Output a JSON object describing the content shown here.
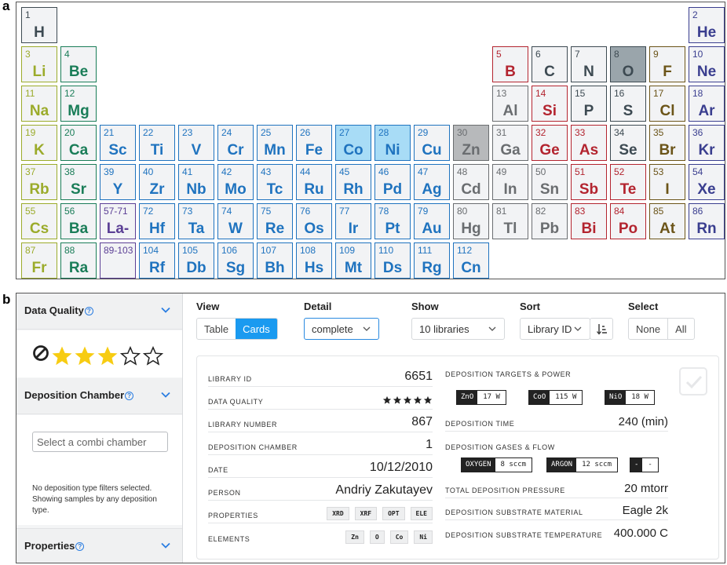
{
  "panel_labels": {
    "a": "a",
    "b": "b"
  },
  "colors": {
    "alkali": "#9bab2b",
    "alkaline_earth": "#1a7d58",
    "transition": "#1f73bf",
    "lanthanide": "#5b3f95",
    "post_transition": "#6a6d70",
    "metalloid": "#3d4a52",
    "nonmetal": "#b3242f",
    "halogen": "#6b5418",
    "noble": "#3a3e8f",
    "accent": "#1a9af0",
    "selected_blue": "#a8dcf6",
    "selected_grey": "#b7b9bb",
    "selected_slate": "#9aa5ab"
  },
  "periodic_table": {
    "elements": [
      {
        "n": "1",
        "s": "H",
        "g": 1,
        "p": 1,
        "c": "metalloid"
      },
      {
        "n": "2",
        "s": "He",
        "g": 18,
        "p": 1,
        "c": "noble"
      },
      {
        "n": "3",
        "s": "Li",
        "g": 1,
        "p": 2,
        "c": "alkali"
      },
      {
        "n": "4",
        "s": "Be",
        "g": 2,
        "p": 2,
        "c": "alkaline_earth"
      },
      {
        "n": "5",
        "s": "B",
        "g": 13,
        "p": 2,
        "c": "nonmetal"
      },
      {
        "n": "6",
        "s": "C",
        "g": 14,
        "p": 2,
        "c": "metalloid"
      },
      {
        "n": "7",
        "s": "N",
        "g": 15,
        "p": 2,
        "c": "metalloid"
      },
      {
        "n": "8",
        "s": "O",
        "g": 16,
        "p": 2,
        "c": "metalloid",
        "sel": "slate"
      },
      {
        "n": "9",
        "s": "F",
        "g": 17,
        "p": 2,
        "c": "halogen"
      },
      {
        "n": "10",
        "s": "Ne",
        "g": 18,
        "p": 2,
        "c": "noble"
      },
      {
        "n": "11",
        "s": "Na",
        "g": 1,
        "p": 3,
        "c": "alkali"
      },
      {
        "n": "12",
        "s": "Mg",
        "g": 2,
        "p": 3,
        "c": "alkaline_earth"
      },
      {
        "n": "13",
        "s": "Al",
        "g": 13,
        "p": 3,
        "c": "post_transition"
      },
      {
        "n": "14",
        "s": "Si",
        "g": 14,
        "p": 3,
        "c": "nonmetal"
      },
      {
        "n": "15",
        "s": "P",
        "g": 15,
        "p": 3,
        "c": "metalloid"
      },
      {
        "n": "16",
        "s": "S",
        "g": 16,
        "p": 3,
        "c": "metalloid"
      },
      {
        "n": "17",
        "s": "Cl",
        "g": 17,
        "p": 3,
        "c": "halogen"
      },
      {
        "n": "18",
        "s": "Ar",
        "g": 18,
        "p": 3,
        "c": "noble"
      },
      {
        "n": "19",
        "s": "K",
        "g": 1,
        "p": 4,
        "c": "alkali"
      },
      {
        "n": "20",
        "s": "Ca",
        "g": 2,
        "p": 4,
        "c": "alkaline_earth"
      },
      {
        "n": "21",
        "s": "Sc",
        "g": 3,
        "p": 4,
        "c": "transition"
      },
      {
        "n": "22",
        "s": "Ti",
        "g": 4,
        "p": 4,
        "c": "transition"
      },
      {
        "n": "23",
        "s": "V",
        "g": 5,
        "p": 4,
        "c": "transition"
      },
      {
        "n": "24",
        "s": "Cr",
        "g": 6,
        "p": 4,
        "c": "transition"
      },
      {
        "n": "25",
        "s": "Mn",
        "g": 7,
        "p": 4,
        "c": "transition"
      },
      {
        "n": "26",
        "s": "Fe",
        "g": 8,
        "p": 4,
        "c": "transition"
      },
      {
        "n": "27",
        "s": "Co",
        "g": 9,
        "p": 4,
        "c": "transition",
        "sel": "blue"
      },
      {
        "n": "28",
        "s": "Ni",
        "g": 10,
        "p": 4,
        "c": "transition",
        "sel": "blue"
      },
      {
        "n": "29",
        "s": "Cu",
        "g": 11,
        "p": 4,
        "c": "transition"
      },
      {
        "n": "30",
        "s": "Zn",
        "g": 12,
        "p": 4,
        "c": "post_transition",
        "sel": "grey"
      },
      {
        "n": "31",
        "s": "Ga",
        "g": 13,
        "p": 4,
        "c": "post_transition"
      },
      {
        "n": "32",
        "s": "Ge",
        "g": 14,
        "p": 4,
        "c": "nonmetal"
      },
      {
        "n": "33",
        "s": "As",
        "g": 15,
        "p": 4,
        "c": "nonmetal"
      },
      {
        "n": "34",
        "s": "Se",
        "g": 16,
        "p": 4,
        "c": "metalloid"
      },
      {
        "n": "35",
        "s": "Br",
        "g": 17,
        "p": 4,
        "c": "halogen"
      },
      {
        "n": "36",
        "s": "Kr",
        "g": 18,
        "p": 4,
        "c": "noble"
      },
      {
        "n": "37",
        "s": "Rb",
        "g": 1,
        "p": 5,
        "c": "alkali"
      },
      {
        "n": "38",
        "s": "Sr",
        "g": 2,
        "p": 5,
        "c": "alkaline_earth"
      },
      {
        "n": "39",
        "s": "Y",
        "g": 3,
        "p": 5,
        "c": "transition"
      },
      {
        "n": "40",
        "s": "Zr",
        "g": 4,
        "p": 5,
        "c": "transition"
      },
      {
        "n": "41",
        "s": "Nb",
        "g": 5,
        "p": 5,
        "c": "transition"
      },
      {
        "n": "42",
        "s": "Mo",
        "g": 6,
        "p": 5,
        "c": "transition"
      },
      {
        "n": "43",
        "s": "Tc",
        "g": 7,
        "p": 5,
        "c": "transition"
      },
      {
        "n": "44",
        "s": "Ru",
        "g": 8,
        "p": 5,
        "c": "transition"
      },
      {
        "n": "45",
        "s": "Rh",
        "g": 9,
        "p": 5,
        "c": "transition"
      },
      {
        "n": "46",
        "s": "Pd",
        "g": 10,
        "p": 5,
        "c": "transition"
      },
      {
        "n": "47",
        "s": "Ag",
        "g": 11,
        "p": 5,
        "c": "transition"
      },
      {
        "n": "48",
        "s": "Cd",
        "g": 12,
        "p": 5,
        "c": "post_transition"
      },
      {
        "n": "49",
        "s": "In",
        "g": 13,
        "p": 5,
        "c": "post_transition"
      },
      {
        "n": "50",
        "s": "Sn",
        "g": 14,
        "p": 5,
        "c": "post_transition"
      },
      {
        "n": "51",
        "s": "Sb",
        "g": 15,
        "p": 5,
        "c": "nonmetal"
      },
      {
        "n": "52",
        "s": "Te",
        "g": 16,
        "p": 5,
        "c": "nonmetal"
      },
      {
        "n": "53",
        "s": "I",
        "g": 17,
        "p": 5,
        "c": "halogen"
      },
      {
        "n": "54",
        "s": "Xe",
        "g": 18,
        "p": 5,
        "c": "noble"
      },
      {
        "n": "55",
        "s": "Cs",
        "g": 1,
        "p": 6,
        "c": "alkali"
      },
      {
        "n": "56",
        "s": "Ba",
        "g": 2,
        "p": 6,
        "c": "alkaline_earth"
      },
      {
        "n": "57-71",
        "s": "La-",
        "g": 3,
        "p": 6,
        "c": "lanthanide"
      },
      {
        "n": "72",
        "s": "Hf",
        "g": 4,
        "p": 6,
        "c": "transition"
      },
      {
        "n": "73",
        "s": "Ta",
        "g": 5,
        "p": 6,
        "c": "transition"
      },
      {
        "n": "74",
        "s": "W",
        "g": 6,
        "p": 6,
        "c": "transition"
      },
      {
        "n": "75",
        "s": "Re",
        "g": 7,
        "p": 6,
        "c": "transition"
      },
      {
        "n": "76",
        "s": "Os",
        "g": 8,
        "p": 6,
        "c": "transition"
      },
      {
        "n": "77",
        "s": "Ir",
        "g": 9,
        "p": 6,
        "c": "transition"
      },
      {
        "n": "78",
        "s": "Pt",
        "g": 10,
        "p": 6,
        "c": "transition"
      },
      {
        "n": "79",
        "s": "Au",
        "g": 11,
        "p": 6,
        "c": "transition"
      },
      {
        "n": "80",
        "s": "Hg",
        "g": 12,
        "p": 6,
        "c": "post_transition"
      },
      {
        "n": "81",
        "s": "Tl",
        "g": 13,
        "p": 6,
        "c": "post_transition"
      },
      {
        "n": "82",
        "s": "Pb",
        "g": 14,
        "p": 6,
        "c": "post_transition"
      },
      {
        "n": "83",
        "s": "Bi",
        "g": 15,
        "p": 6,
        "c": "nonmetal"
      },
      {
        "n": "84",
        "s": "Po",
        "g": 16,
        "p": 6,
        "c": "nonmetal"
      },
      {
        "n": "85",
        "s": "At",
        "g": 17,
        "p": 6,
        "c": "halogen"
      },
      {
        "n": "86",
        "s": "Rn",
        "g": 18,
        "p": 6,
        "c": "noble"
      },
      {
        "n": "87",
        "s": "Fr",
        "g": 1,
        "p": 7,
        "c": "alkali"
      },
      {
        "n": "88",
        "s": "Ra",
        "g": 2,
        "p": 7,
        "c": "alkaline_earth"
      },
      {
        "n": "89-103",
        "s": "",
        "g": 3,
        "p": 7,
        "c": "lanthanide"
      },
      {
        "n": "104",
        "s": "Rf",
        "g": 4,
        "p": 7,
        "c": "transition"
      },
      {
        "n": "105",
        "s": "Db",
        "g": 5,
        "p": 7,
        "c": "transition"
      },
      {
        "n": "106",
        "s": "Sg",
        "g": 6,
        "p": 7,
        "c": "transition"
      },
      {
        "n": "107",
        "s": "Bh",
        "g": 7,
        "p": 7,
        "c": "transition"
      },
      {
        "n": "108",
        "s": "Hs",
        "g": 8,
        "p": 7,
        "c": "transition"
      },
      {
        "n": "109",
        "s": "Mt",
        "g": 9,
        "p": 7,
        "c": "transition"
      },
      {
        "n": "110",
        "s": "Ds",
        "g": 10,
        "p": 7,
        "c": "transition"
      },
      {
        "n": "111",
        "s": "Rg",
        "g": 11,
        "p": 7,
        "c": "transition"
      },
      {
        "n": "112",
        "s": "Cn",
        "g": 12,
        "p": 7,
        "c": "transition"
      }
    ]
  },
  "sidebar": {
    "data_quality": {
      "title": "Data Quality",
      "help": "?",
      "rating_filled": 3,
      "rating_max": 5
    },
    "deposition_chamber": {
      "title": "Deposition Chamber",
      "help": "?",
      "placeholder": "Select a combi chamber"
    },
    "filter_note": "No deposition type filters selected. Showing samples by any deposition type.",
    "properties": {
      "title": "Properties",
      "help": "?"
    }
  },
  "controls": {
    "view": {
      "label": "View",
      "options": [
        "Table",
        "Cards"
      ],
      "selected": "Cards"
    },
    "detail": {
      "label": "Detail",
      "value": "complete"
    },
    "show": {
      "label": "Show",
      "value": "10 libraries"
    },
    "sort": {
      "label": "Sort",
      "value": "Library ID"
    },
    "select": {
      "label": "Select",
      "options": [
        "None",
        "All"
      ]
    }
  },
  "card": {
    "left": [
      {
        "key": "LIBRARY ID",
        "value": "6651"
      },
      {
        "key": "DATA QUALITY",
        "rating": 5
      },
      {
        "key": "LIBRARY NUMBER",
        "value": "867"
      },
      {
        "key": "DEPOSITION CHAMBER",
        "value": "1"
      },
      {
        "key": "DATE",
        "value": "10/12/2010"
      },
      {
        "key": "PERSON",
        "value": "Andriy Zakutayev"
      },
      {
        "key": "PROPERTIES",
        "chips": [
          "XRD",
          "XRF",
          "OPT",
          "ELE"
        ]
      },
      {
        "key": "ELEMENTS",
        "chips": [
          "Zn",
          "O",
          "Co",
          "Ni"
        ]
      }
    ],
    "right": {
      "targets_label": "DEPOSITION TARGETS & POWER",
      "targets": [
        {
          "name": "ZnO",
          "value": "17 W"
        },
        {
          "name": "CoO",
          "value": "115 W"
        },
        {
          "name": "NiO",
          "value": "18 W"
        }
      ],
      "time_label": "DEPOSITION TIME",
      "time_value": "240 (min)",
      "gases_label": "DEPOSITION GASES & FLOW",
      "gases": [
        {
          "name": "OXYGEN",
          "value": "8 sccm"
        },
        {
          "name": "ARGON",
          "value": "12 sccm"
        },
        {
          "name": "-",
          "value": "-"
        }
      ],
      "pressure_label": "TOTAL DEPOSITION PRESSURE",
      "pressure_value": "20 mtorr",
      "substrate_label": "DEPOSITION SUBSTRATE MATERIAL",
      "substrate_value": "Eagle 2k",
      "temp_label": "DEPOSITION SUBSTRATE TEMPERATURE",
      "temp_value": "400.000 C"
    }
  }
}
